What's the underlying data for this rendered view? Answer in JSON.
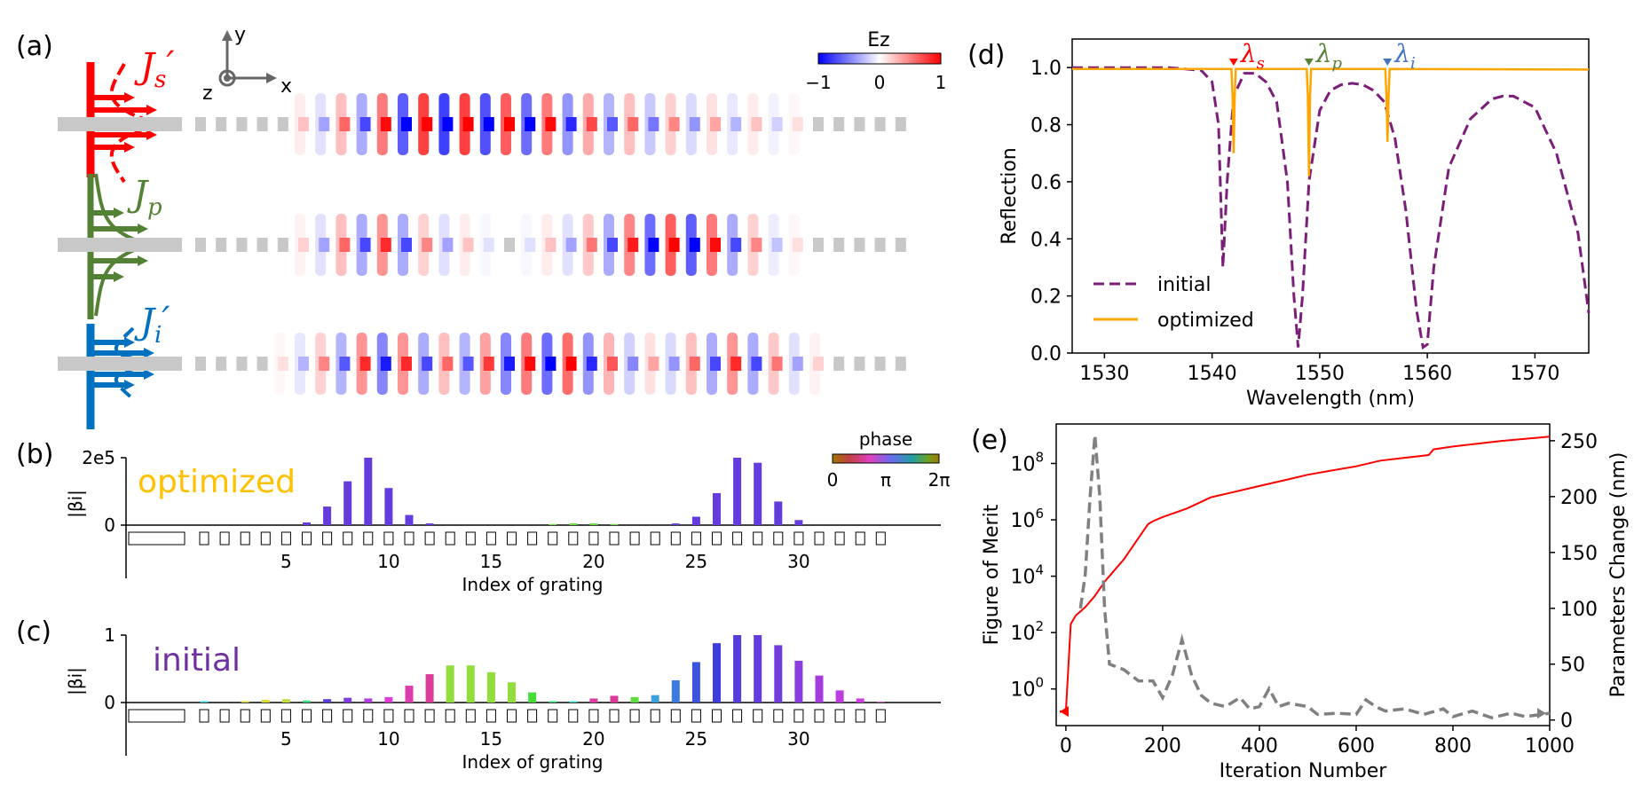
{
  "panel_labels": {
    "a": "(a)",
    "b": "(b)",
    "c": "(c)",
    "d": "(d)",
    "e": "(e)"
  },
  "panel_a": {
    "colorbar": {
      "title": "Ez",
      "min_label": "−1",
      "mid_label": "0",
      "max_label": "1"
    },
    "axes": {
      "x": "x",
      "y": "y",
      "z": "z"
    },
    "sources": [
      {
        "name": "Js'",
        "label_main": "J",
        "label_sub": "s",
        "label_prime": "′",
        "color": "#ff0000"
      },
      {
        "name": "Jp",
        "label_main": "J",
        "label_sub": "p",
        "label_prime": "",
        "color": "#548235"
      },
      {
        "name": "Ji'",
        "label_main": "J",
        "label_sub": "i",
        "label_prime": "′",
        "color": "#0070c0"
      }
    ],
    "field_rows": [
      [
        0,
        0,
        0,
        -0.02,
        0.05,
        0.2,
        -0.3,
        0.5,
        -0.6,
        0.8,
        -0.9,
        1.0,
        -1.0,
        1.0,
        -0.95,
        0.9,
        -0.85,
        0.8,
        -0.7,
        0.6,
        -0.55,
        0.5,
        -0.45,
        0.4,
        -0.35,
        0.3,
        -0.25,
        0.2,
        -0.15,
        0.1,
        -0.05,
        0.03,
        0,
        0,
        0
      ],
      [
        0,
        0,
        0,
        0.02,
        -0.05,
        0.15,
        -0.3,
        0.5,
        -0.6,
        0.7,
        -0.6,
        0.4,
        -0.3,
        0.2,
        -0.1,
        0.05,
        -0.1,
        0.2,
        -0.3,
        0.45,
        -0.6,
        0.75,
        -0.85,
        0.9,
        -0.9,
        0.8,
        -0.6,
        0.4,
        -0.2,
        0.1,
        -0.05,
        0.02,
        0,
        0,
        0
      ],
      [
        0,
        0,
        0,
        -0.02,
        0.1,
        -0.25,
        0.4,
        -0.55,
        0.7,
        -0.75,
        0.7,
        -0.6,
        0.5,
        -0.55,
        0.65,
        -0.75,
        0.8,
        -0.85,
        0.85,
        -0.7,
        0.55,
        -0.4,
        0.3,
        -0.35,
        0.5,
        -0.6,
        0.7,
        -0.6,
        0.45,
        -0.3,
        0.15,
        -0.06,
        0.02,
        0,
        0
      ]
    ]
  },
  "chart_data": [
    {
      "id": "b",
      "type": "bar",
      "label_text": "optimized",
      "label_color": "#ffc000",
      "ylabel": "|βi|",
      "xlabel": "Index of grating",
      "ytick_labels": [
        "2e5",
        "0"
      ],
      "ylim": [
        0,
        200000
      ],
      "xticks": [
        5,
        10,
        15,
        20,
        25,
        30
      ],
      "x": [
        1,
        2,
        3,
        4,
        5,
        6,
        7,
        8,
        9,
        10,
        11,
        12,
        13,
        14,
        15,
        16,
        17,
        18,
        19,
        20,
        21,
        22,
        23,
        24,
        25,
        26,
        27,
        28,
        29,
        30,
        31,
        32,
        33,
        34
      ],
      "values": [
        0,
        0,
        0,
        0,
        0,
        8000,
        55000,
        130000,
        200000,
        110000,
        30000,
        5000,
        1000,
        0,
        0,
        0,
        0,
        3000,
        5000,
        5000,
        3000,
        0,
        0,
        5000,
        25000,
        95000,
        200000,
        185000,
        70000,
        15000,
        0,
        0,
        0,
        0
      ],
      "phase": [
        0,
        0,
        0,
        0,
        0,
        4.5,
        4.5,
        4.5,
        4.5,
        4.5,
        4.5,
        4.5,
        2.5,
        0,
        0,
        0,
        0,
        1.3,
        1.3,
        1.3,
        1.3,
        0,
        0,
        4.5,
        4.5,
        4.5,
        4.5,
        4.5,
        4.5,
        4.5,
        0,
        0,
        0,
        0
      ],
      "phase_colorbar": {
        "title": "phase",
        "tick_labels": [
          "0",
          "π",
          "2π"
        ]
      }
    },
    {
      "id": "c",
      "type": "bar",
      "label_text": "initial",
      "label_color": "#7030a0",
      "ylabel": "|βi|",
      "xlabel": "Index of grating",
      "ytick_labels": [
        "1",
        "0"
      ],
      "ylim": [
        0,
        1
      ],
      "xticks": [
        5,
        10,
        15,
        20,
        25,
        30
      ],
      "x": [
        1,
        2,
        3,
        4,
        5,
        6,
        7,
        8,
        9,
        10,
        11,
        12,
        13,
        14,
        15,
        16,
        17,
        18,
        19,
        20,
        21,
        22,
        23,
        24,
        25,
        26,
        27,
        28,
        29,
        30,
        31,
        32,
        33,
        34
      ],
      "values": [
        0.02,
        0.0,
        0.02,
        0.04,
        0.05,
        0.03,
        0.05,
        0.07,
        0.06,
        0.08,
        0.25,
        0.42,
        0.55,
        0.55,
        0.45,
        0.3,
        0.15,
        0.02,
        0.02,
        0.06,
        0.1,
        0.08,
        0.11,
        0.33,
        0.6,
        0.88,
        1.0,
        1.0,
        0.85,
        0.62,
        0.4,
        0.18,
        0.06,
        0.01
      ],
      "phase": [
        3.0,
        3.0,
        0.4,
        0.4,
        0.6,
        2.2,
        4.4,
        4.7,
        5.1,
        5.5,
        5.8,
        6.0,
        1.0,
        1.0,
        1.0,
        1.0,
        1.6,
        2.2,
        2.8,
        5.9,
        6.0,
        1.4,
        3.4,
        3.7,
        4.0,
        4.2,
        4.4,
        4.5,
        4.6,
        4.8,
        5.0,
        5.2,
        5.3,
        5.5
      ]
    },
    {
      "id": "d",
      "type": "line",
      "xlabel": "Wavelength (nm)",
      "ylabel": "Reflection",
      "xlim": [
        1527,
        1575
      ],
      "ylim": [
        0,
        1.1
      ],
      "xticks": [
        1530,
        1540,
        1550,
        1560,
        1570
      ],
      "yticks": [
        0.0,
        0.2,
        0.4,
        0.6,
        0.8,
        1.0
      ],
      "ytick_labels": [
        "0.0",
        "0.2",
        "0.4",
        "0.6",
        "0.8",
        "1.0"
      ],
      "legend": "bottom-left",
      "series": [
        {
          "name": "initial",
          "color": "#7b1e7a",
          "dash": true,
          "x": [
            1527,
            1536,
            1539,
            1540,
            1540.6,
            1541,
            1541.4,
            1542,
            1543,
            1544,
            1545,
            1546,
            1547,
            1547.6,
            1548,
            1548.4,
            1549,
            1550,
            1551,
            1552,
            1553,
            1554,
            1555,
            1556,
            1557,
            1558,
            1559,
            1559.6,
            1560,
            1560.6,
            1562,
            1564,
            1566,
            1567,
            1568,
            1570,
            1572,
            1574,
            1575
          ],
          "y": [
            1.0,
            1.0,
            0.99,
            0.95,
            0.8,
            0.3,
            0.6,
            0.9,
            0.98,
            0.98,
            0.95,
            0.88,
            0.6,
            0.2,
            0.02,
            0.2,
            0.6,
            0.85,
            0.92,
            0.94,
            0.945,
            0.94,
            0.92,
            0.88,
            0.75,
            0.5,
            0.15,
            0.02,
            0.03,
            0.3,
            0.65,
            0.82,
            0.89,
            0.9,
            0.9,
            0.86,
            0.7,
            0.42,
            0.14
          ]
        },
        {
          "name": "optimized",
          "color": "#ffa500",
          "dash": false,
          "x": [
            1527,
            1541.8,
            1541.9,
            1542,
            1542.1,
            1542.2,
            1548.8,
            1548.9,
            1549,
            1549.1,
            1549.2,
            1556.1,
            1556.2,
            1556.3,
            1556.4,
            1556.5,
            1575
          ],
          "y": [
            0.995,
            0.995,
            0.9,
            0.7,
            0.9,
            0.995,
            0.995,
            0.9,
            0.62,
            0.9,
            0.995,
            0.995,
            0.9,
            0.74,
            0.9,
            0.995,
            0.993
          ]
        }
      ],
      "markers": [
        {
          "name": "λs",
          "main": "λ",
          "sub": "s",
          "x": 1542,
          "color": "#ff0000"
        },
        {
          "name": "λp",
          "main": "λ",
          "sub": "p",
          "x": 1549,
          "color": "#548235"
        },
        {
          "name": "λi",
          "main": "λ",
          "sub": "i",
          "x": 1556.3,
          "color": "#4472c4"
        }
      ]
    },
    {
      "id": "e",
      "type": "line",
      "xlabel": "Iteration Number",
      "ylabel_left": "Figure of Merit",
      "ylabel_right": "Parameters Change (nm)",
      "xlim": [
        -20,
        1000
      ],
      "xticks": [
        0,
        200,
        400,
        600,
        800,
        1000
      ],
      "ylim_left_log10": [
        -1.3,
        9.4
      ],
      "yticks_left_exp": [
        0,
        2,
        4,
        6,
        8
      ],
      "ylim_right": [
        -5,
        265
      ],
      "yticks_right": [
        0,
        50,
        100,
        150,
        200,
        250
      ],
      "series": [
        {
          "name": "figure of merit",
          "axis": "left",
          "color": "#ff0000",
          "dash": false,
          "x": [
            0,
            10,
            20,
            40,
            60,
            80,
            100,
            120,
            140,
            160,
            170,
            180,
            200,
            250,
            300,
            350,
            400,
            450,
            500,
            550,
            600,
            650,
            700,
            750,
            760,
            800,
            850,
            900,
            1000
          ],
          "y_log10": [
            -0.8,
            2.3,
            2.6,
            2.9,
            3.3,
            3.8,
            4.2,
            4.6,
            5.1,
            5.6,
            5.85,
            5.95,
            6.1,
            6.4,
            6.8,
            7.0,
            7.2,
            7.4,
            7.6,
            7.75,
            7.9,
            8.1,
            8.2,
            8.3,
            8.5,
            8.6,
            8.7,
            8.8,
            8.95
          ]
        },
        {
          "name": "parameters change",
          "axis": "right",
          "color": "#808080",
          "dash": true,
          "x": [
            30,
            40,
            50,
            60,
            70,
            80,
            90,
            120,
            150,
            180,
            200,
            220,
            240,
            260,
            280,
            300,
            330,
            360,
            380,
            400,
            420,
            440,
            460,
            500,
            520,
            560,
            600,
            620,
            640,
            660,
            700,
            740,
            780,
            800,
            840,
            880,
            920,
            950,
            1000
          ],
          "y": [
            100,
            130,
            200,
            255,
            200,
            100,
            50,
            45,
            35,
            35,
            20,
            40,
            72,
            40,
            22,
            15,
            12,
            20,
            10,
            12,
            28,
            12,
            15,
            12,
            5,
            6,
            5,
            18,
            12,
            8,
            10,
            5,
            10,
            3,
            8,
            2,
            6,
            3,
            6
          ]
        }
      ],
      "start_marker_color": "#ff0000"
    }
  ]
}
